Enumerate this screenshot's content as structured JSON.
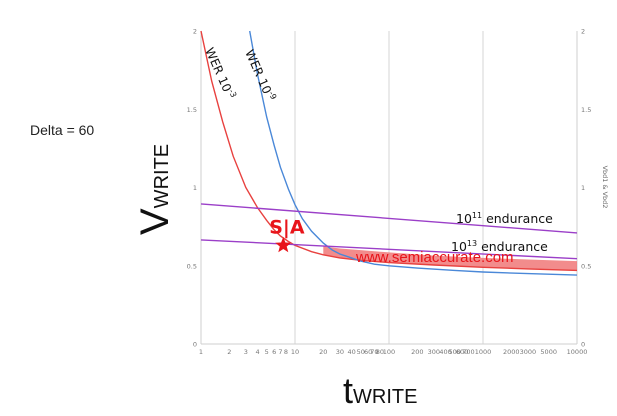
{
  "chart_data": {
    "type": "line",
    "title": "",
    "note": "Delta = 60",
    "xlabel": {
      "base": "t",
      "sub": "WRITE"
    },
    "ylabel": {
      "base": "V",
      "sub": "WRITE"
    },
    "y2label": "Vbd1 & Vbd2",
    "x_scale": "log",
    "xlim": [
      1,
      10000
    ],
    "ylim": [
      0,
      2
    ],
    "x_ticks": [
      {
        "v": 1,
        "label": "1",
        "major": true
      },
      {
        "v": 2,
        "label": "2",
        "major": false
      },
      {
        "v": 3,
        "label": "3",
        "major": false
      },
      {
        "v": 4,
        "label": "4",
        "major": false
      },
      {
        "v": 5,
        "label": "5",
        "major": false
      },
      {
        "v": 6,
        "label": "6",
        "major": false
      },
      {
        "v": 7,
        "label": "7",
        "major": false
      },
      {
        "v": 8,
        "label": "8",
        "major": false
      },
      {
        "v": 10,
        "label": "10",
        "major": true
      },
      {
        "v": 20,
        "label": "20",
        "major": false
      },
      {
        "v": 30,
        "label": "30",
        "major": false
      },
      {
        "v": 40,
        "label": "40",
        "major": false
      },
      {
        "v": 50,
        "label": "50",
        "major": false
      },
      {
        "v": 60,
        "label": "60",
        "major": false
      },
      {
        "v": 70,
        "label": "70",
        "major": false
      },
      {
        "v": 80,
        "label": "80",
        "major": false
      },
      {
        "v": 100,
        "label": "100",
        "major": true
      },
      {
        "v": 200,
        "label": "200",
        "major": false
      },
      {
        "v": 300,
        "label": "300",
        "major": false
      },
      {
        "v": 400,
        "label": "400",
        "major": false
      },
      {
        "v": 500,
        "label": "500",
        "major": false
      },
      {
        "v": 600,
        "label": "600",
        "major": false
      },
      {
        "v": 700,
        "label": "700",
        "major": false
      },
      {
        "v": 1000,
        "label": "1000",
        "major": true
      },
      {
        "v": 2000,
        "label": "2000",
        "major": false
      },
      {
        "v": 3000,
        "label": "3000",
        "major": false
      },
      {
        "v": 5000,
        "label": "5000",
        "major": false
      },
      {
        "v": 10000,
        "label": "10000",
        "major": true
      }
    ],
    "y_ticks": [
      {
        "v": 0,
        "label": "0"
      },
      {
        "v": 0.5,
        "label": "0.5"
      },
      {
        "v": 1,
        "label": "1"
      },
      {
        "v": 1.5,
        "label": "1.5"
      },
      {
        "v": 2,
        "label": "2"
      }
    ],
    "series": [
      {
        "name": "WER 10-3",
        "label_base": "WER 10",
        "label_sup": "-3",
        "color": "#e8413f",
        "x": [
          1,
          1.3,
          1.7,
          2.2,
          3,
          4,
          5,
          6,
          7,
          8.5,
          10,
          15,
          20,
          30,
          50,
          100,
          300,
          1000,
          3000,
          10000
        ],
        "y": [
          2.0,
          1.68,
          1.42,
          1.2,
          1.0,
          0.87,
          0.79,
          0.73,
          0.69,
          0.655,
          0.63,
          0.59,
          0.57,
          0.55,
          0.535,
          0.52,
          0.505,
          0.49,
          0.48,
          0.47
        ]
      },
      {
        "name": "WER 10-9",
        "label_base": "WER 10",
        "label_sup": "-9",
        "color": "#4a88d8",
        "x": [
          3.3,
          4,
          5,
          6,
          7,
          8.5,
          10,
          12,
          15,
          20,
          25,
          30,
          40,
          50,
          70,
          100,
          200,
          500,
          1000,
          3000,
          10000
        ],
        "y": [
          2.0,
          1.72,
          1.45,
          1.27,
          1.13,
          0.99,
          0.89,
          0.8,
          0.72,
          0.645,
          0.6,
          0.575,
          0.55,
          0.53,
          0.51,
          0.5,
          0.485,
          0.47,
          0.46,
          0.45,
          0.44
        ]
      },
      {
        "name": "10^11 endurance",
        "label_base": "10",
        "label_sup": "11",
        "label_rest": " endurance",
        "color": "#9b3fc8",
        "x": [
          1,
          10000
        ],
        "y": [
          0.895,
          0.71
        ]
      },
      {
        "name": "10^13 endurance",
        "label_base": "10",
        "label_sup": "13",
        "label_rest": " endurance",
        "color": "#9b3fc8",
        "x": [
          1,
          10000
        ],
        "y": [
          0.665,
          0.545
        ]
      }
    ],
    "band": {
      "color": "#f07878",
      "x": [
        20,
        30,
        50,
        100,
        300,
        1000,
        3000,
        10000
      ],
      "y_top": [
        0.625,
        0.61,
        0.6,
        0.585,
        0.565,
        0.55,
        0.54,
        0.53
      ],
      "y_bottom": [
        0.57,
        0.55,
        0.535,
        0.52,
        0.505,
        0.49,
        0.48,
        0.47
      ]
    },
    "marker": {
      "x": 7.5,
      "y": 0.63,
      "color": "#e8141a",
      "label": "S|A"
    },
    "watermark": "www.semiaccurate.com"
  }
}
